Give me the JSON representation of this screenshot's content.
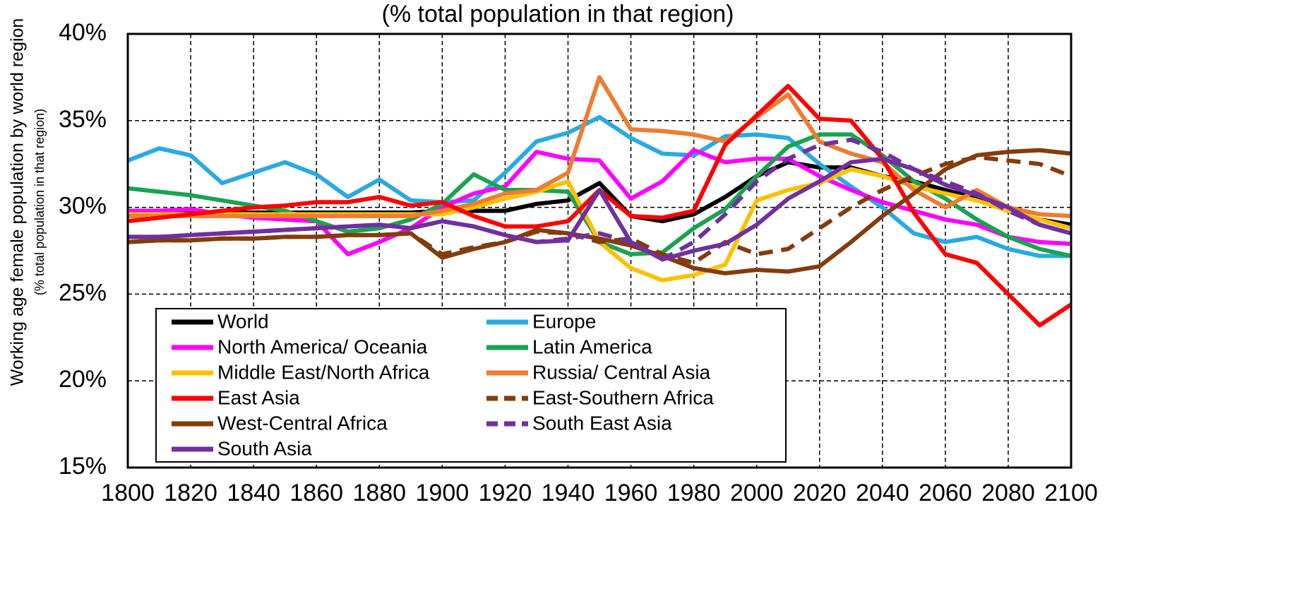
{
  "chart_data": {
    "type": "line",
    "title": "(% total population in that region)",
    "ylabel": "Working age female population by world region",
    "ylabel_sub": "(% total population in that region)",
    "x": [
      1800,
      1810,
      1820,
      1830,
      1840,
      1850,
      1860,
      1870,
      1880,
      1890,
      1900,
      1910,
      1920,
      1930,
      1940,
      1950,
      1960,
      1970,
      1980,
      1990,
      2000,
      2010,
      2020,
      2030,
      2040,
      2050,
      2060,
      2070,
      2080,
      2090,
      2100
    ],
    "xlim": [
      1800,
      2100
    ],
    "xticks": [
      1800,
      1820,
      1840,
      1860,
      1880,
      1900,
      1920,
      1940,
      1960,
      1980,
      2000,
      2020,
      2040,
      2060,
      2080,
      2100
    ],
    "ylim": [
      15,
      40
    ],
    "yticks": [
      {
        "value": 15,
        "label": "15%"
      },
      {
        "value": 20,
        "label": "20%"
      },
      {
        "value": 25,
        "label": "25%"
      },
      {
        "value": 30,
        "label": "30%"
      },
      {
        "value": 35,
        "label": "35%"
      },
      {
        "value": 40,
        "label": "40%"
      }
    ],
    "grid": true,
    "legend": "lower left",
    "series": [
      {
        "name": "World",
        "color": "#000000",
        "dash": false,
        "values": [
          29.7,
          29.7,
          29.7,
          29.7,
          29.7,
          29.7,
          29.7,
          29.7,
          29.7,
          29.7,
          29.8,
          29.8,
          29.8,
          30.2,
          30.4,
          31.4,
          29.5,
          29.2,
          29.6,
          30.6,
          31.8,
          32.6,
          32.3,
          32.3,
          31.8,
          31.5,
          31.0,
          30.5,
          29.8,
          29.3,
          29.0
        ]
      },
      {
        "name": "Europe",
        "color": "#29aae1",
        "dash": false,
        "values": [
          32.7,
          33.4,
          33.0,
          31.4,
          32.0,
          32.6,
          31.9,
          30.6,
          31.6,
          30.4,
          30.3,
          30.4,
          32.0,
          33.8,
          34.3,
          35.2,
          34.0,
          33.1,
          33.0,
          34.1,
          34.2,
          34.0,
          32.5,
          31.2,
          30.0,
          28.5,
          28.0,
          28.3,
          27.6,
          27.2,
          27.2
        ]
      },
      {
        "name": "North America/ Oceania",
        "color": "#ff00ff",
        "dash": false,
        "values": [
          29.8,
          29.8,
          29.9,
          29.6,
          29.4,
          29.3,
          29.2,
          27.3,
          28.0,
          28.8,
          30.0,
          30.8,
          31.2,
          33.2,
          32.8,
          32.7,
          30.5,
          31.5,
          33.3,
          32.6,
          32.8,
          32.8,
          31.8,
          31.0,
          30.3,
          29.8,
          29.3,
          29.0,
          28.3,
          28.0,
          27.9
        ]
      },
      {
        "name": "Latin America",
        "color": "#1aa351",
        "dash": false,
        "values": [
          31.1,
          30.9,
          30.7,
          30.4,
          30.1,
          29.8,
          29.2,
          28.6,
          28.8,
          29.3,
          30.2,
          31.9,
          31.0,
          31.0,
          30.9,
          28.0,
          27.3,
          27.4,
          28.8,
          29.9,
          31.8,
          33.5,
          34.2,
          34.2,
          33.0,
          31.5,
          30.5,
          29.3,
          28.3,
          27.6,
          27.2
        ]
      },
      {
        "name": "Middle East/North Africa",
        "color": "#ffc000",
        "dash": false,
        "values": [
          29.6,
          29.6,
          29.6,
          29.6,
          29.6,
          29.6,
          29.6,
          29.6,
          29.6,
          29.6,
          29.6,
          30.0,
          30.5,
          30.9,
          31.5,
          28.0,
          26.5,
          25.8,
          26.1,
          26.7,
          30.4,
          31.0,
          31.4,
          32.2,
          31.8,
          31.2,
          30.8,
          30.4,
          29.8,
          29.3,
          28.8
        ]
      },
      {
        "name": "Russia/ Central Asia",
        "color": "#ed7d31",
        "dash": false,
        "values": [
          29.5,
          29.5,
          29.5,
          29.5,
          29.5,
          29.5,
          29.5,
          29.5,
          29.5,
          29.5,
          29.8,
          30.2,
          30.8,
          31.0,
          32.0,
          37.5,
          34.5,
          34.4,
          34.2,
          33.8,
          35.2,
          36.5,
          33.8,
          33.1,
          32.6,
          31.0,
          30.0,
          31.0,
          30.0,
          29.6,
          29.5
        ]
      },
      {
        "name": "East Asia",
        "color": "#ff0000",
        "dash": false,
        "values": [
          29.2,
          29.4,
          29.6,
          29.8,
          30.0,
          30.1,
          30.3,
          30.3,
          30.6,
          30.1,
          30.3,
          29.5,
          28.9,
          28.9,
          29.2,
          31.0,
          29.5,
          29.4,
          29.8,
          33.6,
          35.3,
          37.0,
          35.1,
          35.0,
          32.8,
          29.7,
          27.3,
          26.8,
          25.0,
          23.2,
          24.4
        ]
      },
      {
        "name": "East-Southern Africa",
        "color": "#843c0c",
        "dash": true,
        "values": [
          28.0,
          28.1,
          28.1,
          28.2,
          28.2,
          28.3,
          28.3,
          28.4,
          28.4,
          28.5,
          27.3,
          27.7,
          28.0,
          28.6,
          28.5,
          28.0,
          28.2,
          27.3,
          26.8,
          28.0,
          27.3,
          27.6,
          28.8,
          30.0,
          31.0,
          31.8,
          32.5,
          32.9,
          32.7,
          32.5,
          31.8
        ]
      },
      {
        "name": "West-Central Africa",
        "color": "#843c0c",
        "dash": false,
        "values": [
          28.0,
          28.1,
          28.1,
          28.2,
          28.2,
          28.3,
          28.3,
          28.4,
          28.4,
          28.5,
          27.1,
          27.6,
          28.0,
          28.7,
          28.5,
          28.2,
          27.8,
          27.2,
          26.5,
          26.2,
          26.4,
          26.3,
          26.6,
          28.0,
          29.5,
          30.8,
          32.2,
          33.0,
          33.2,
          33.3,
          33.1
        ]
      },
      {
        "name": "South East Asia",
        "color": "#7030a0",
        "dash": true,
        "values": [
          28.3,
          28.3,
          28.4,
          28.5,
          28.6,
          28.7,
          28.8,
          28.9,
          29.0,
          28.8,
          29.2,
          28.9,
          28.4,
          28.0,
          28.2,
          28.5,
          28.0,
          27.0,
          28.0,
          29.6,
          31.5,
          32.8,
          33.6,
          33.9,
          33.2,
          32.2,
          31.5,
          30.8,
          29.8,
          29.0,
          28.5
        ]
      },
      {
        "name": "South Asia",
        "color": "#7030a0",
        "dash": false,
        "values": [
          28.3,
          28.3,
          28.4,
          28.5,
          28.6,
          28.7,
          28.8,
          28.9,
          29.0,
          28.8,
          29.2,
          28.9,
          28.4,
          28.0,
          28.1,
          31.0,
          28.0,
          27.0,
          27.5,
          27.9,
          29.0,
          30.5,
          31.5,
          32.6,
          32.8,
          32.2,
          31.3,
          30.7,
          30.0,
          29.0,
          28.5
        ]
      }
    ]
  }
}
